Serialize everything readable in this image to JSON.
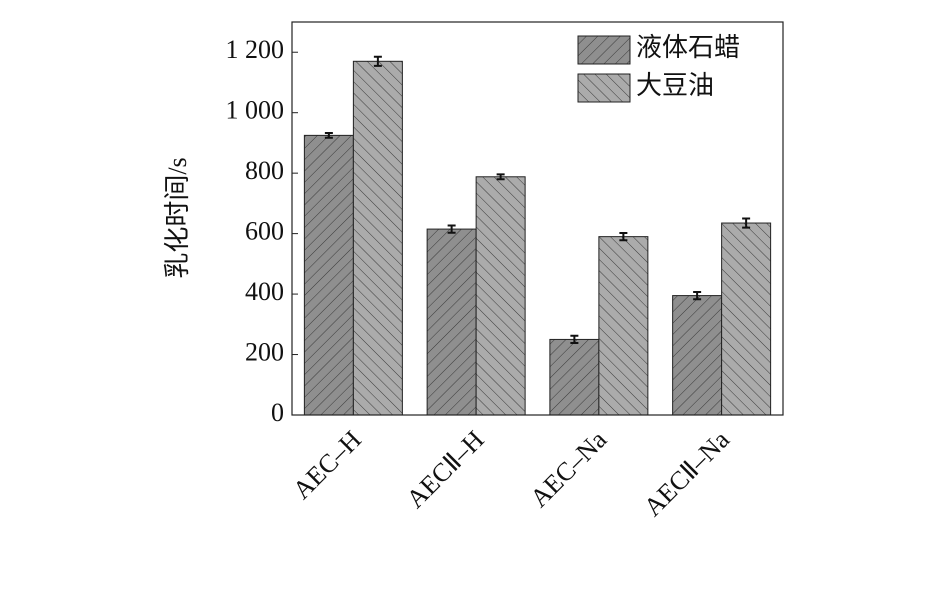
{
  "chart_data": {
    "type": "bar",
    "y_label": "乳化时间/s",
    "categories": [
      "AEC–H",
      "AECⅡ–H",
      "AEC–Na",
      "AECⅡ–Na"
    ],
    "series": [
      {
        "name": "液体石蜡",
        "color": "#8f8f8f",
        "values": [
          925,
          615,
          250,
          395
        ],
        "errors": [
          8,
          12,
          12,
          12
        ]
      },
      {
        "name": "大豆油",
        "color": "#ababab",
        "values": [
          1170,
          788,
          590,
          635
        ],
        "errors": [
          15,
          8,
          12,
          15
        ]
      }
    ],
    "ylim": [
      0,
      1300
    ],
    "yticks": [
      0,
      200,
      400,
      600,
      800,
      {
        "value": 1000,
        "label": "1 000"
      },
      {
        "value": 1200,
        "label": "1 200"
      }
    ],
    "legend": "upper right"
  }
}
